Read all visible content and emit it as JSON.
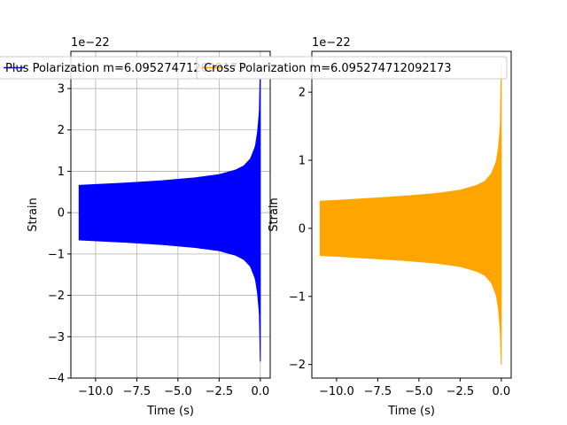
{
  "chart_data": [
    {
      "type": "area",
      "title": "",
      "xlabel": "Time (s)",
      "ylabel": "Strain",
      "exponent_label": "1e−22",
      "xlim": [
        -11.5,
        0.6
      ],
      "ylim": [
        -4.0,
        3.9
      ],
      "xticks": [
        -10.0,
        -7.5,
        -5.0,
        -2.5,
        0.0
      ],
      "xtick_labels": [
        "−10.0",
        "−7.5",
        "−5.0",
        "−2.5",
        "0.0"
      ],
      "yticks": [
        -4,
        -3,
        -2,
        -1,
        0,
        1,
        2,
        3
      ],
      "ytick_labels": [
        "−4",
        "−3",
        "−2",
        "−1",
        "0",
        "1",
        "2",
        "3"
      ],
      "grid": true,
      "legend_position": "top",
      "series": [
        {
          "name": "Plus Polarization m=6.095274712092173",
          "color": "#0000ff",
          "envelope": {
            "x": [
              -11.0,
              -10.0,
              -8.0,
              -6.0,
              -4.0,
              -2.5,
              -1.5,
              -1.0,
              -0.6,
              -0.3,
              -0.15,
              -0.05,
              0.0
            ],
            "upper": [
              0.66,
              0.68,
              0.72,
              0.77,
              0.84,
              0.92,
              1.03,
              1.13,
              1.3,
              1.6,
              2.0,
              2.5,
              3.6
            ],
            "lower": [
              -0.66,
              -0.68,
              -0.72,
              -0.77,
              -0.84,
              -0.92,
              -1.03,
              -1.13,
              -1.3,
              -1.6,
              -2.0,
              -2.5,
              -3.6
            ]
          }
        }
      ]
    },
    {
      "type": "area",
      "title": "",
      "xlabel": "Time (s)",
      "ylabel": "Strain",
      "exponent_label": "1e−22",
      "xlim": [
        -11.5,
        0.6
      ],
      "ylim": [
        -2.2,
        2.6
      ],
      "xticks": [
        -10.0,
        -7.5,
        -5.0,
        -2.5,
        0.0
      ],
      "xtick_labels": [
        "−10.0",
        "−7.5",
        "−5.0",
        "−2.5",
        "0.0"
      ],
      "yticks": [
        -2,
        -1,
        0,
        1,
        2
      ],
      "ytick_labels": [
        "−2",
        "−1",
        "0",
        "1",
        "2"
      ],
      "grid": false,
      "legend_position": "top",
      "series": [
        {
          "name": "Cross Polarization m=6.095274712092173",
          "color": "#ffa500",
          "envelope": {
            "x": [
              -11.0,
              -10.0,
              -8.0,
              -6.0,
              -4.0,
              -2.5,
              -1.5,
              -1.0,
              -0.6,
              -0.3,
              -0.15,
              -0.05,
              0.0
            ],
            "upper": [
              0.4,
              0.41,
              0.44,
              0.47,
              0.51,
              0.56,
              0.63,
              0.69,
              0.8,
              0.98,
              1.22,
              1.55,
              2.4
            ],
            "lower": [
              -0.4,
              -0.41,
              -0.44,
              -0.47,
              -0.51,
              -0.56,
              -0.63,
              -0.69,
              -0.8,
              -0.98,
              -1.22,
              -1.55,
              -2.0
            ]
          }
        }
      ]
    }
  ]
}
